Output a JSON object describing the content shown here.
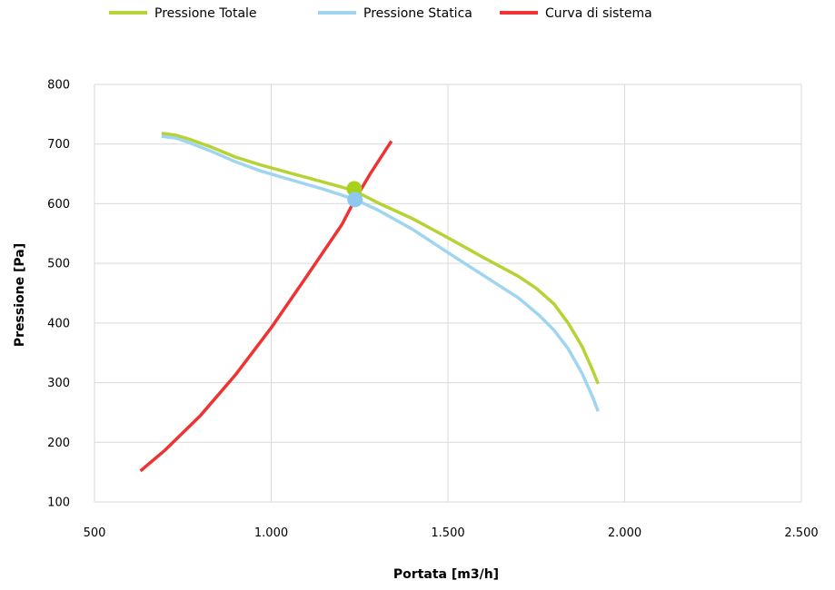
{
  "chart_data": {
    "type": "line",
    "title": "",
    "xlabel": "Portata [m3/h]",
    "ylabel": "Pressione [Pa]",
    "xlim": [
      500,
      2500
    ],
    "ylim": [
      100,
      800
    ],
    "x_ticks": [
      500,
      1000,
      1500,
      2000,
      2500
    ],
    "x_tick_labels": [
      "500",
      "1.000",
      "1.500",
      "2.000",
      "2.500"
    ],
    "y_ticks": [
      100,
      200,
      300,
      400,
      500,
      600,
      700,
      800
    ],
    "y_tick_labels": [
      "100",
      "200",
      "300",
      "400",
      "500",
      "600",
      "700",
      "800"
    ],
    "grid": true,
    "legend_position": "top",
    "series": [
      {
        "name": "Pressione Totale",
        "color": "#b5d334",
        "points": [
          [
            690,
            718
          ],
          [
            730,
            715
          ],
          [
            770,
            708
          ],
          [
            830,
            695
          ],
          [
            900,
            678
          ],
          [
            970,
            665
          ],
          [
            1050,
            652
          ],
          [
            1150,
            636
          ],
          [
            1235,
            622
          ],
          [
            1300,
            602
          ],
          [
            1400,
            575
          ],
          [
            1500,
            543
          ],
          [
            1600,
            510
          ],
          [
            1700,
            478
          ],
          [
            1750,
            458
          ],
          [
            1800,
            432
          ],
          [
            1840,
            400
          ],
          [
            1880,
            360
          ],
          [
            1910,
            320
          ],
          [
            1925,
            298
          ]
        ]
      },
      {
        "name": "Pressione Statica",
        "color": "#9fd5f0",
        "points": [
          [
            690,
            713
          ],
          [
            730,
            710
          ],
          [
            770,
            702
          ],
          [
            830,
            688
          ],
          [
            900,
            670
          ],
          [
            970,
            655
          ],
          [
            1050,
            641
          ],
          [
            1150,
            624
          ],
          [
            1237,
            607
          ],
          [
            1300,
            590
          ],
          [
            1400,
            557
          ],
          [
            1500,
            518
          ],
          [
            1600,
            480
          ],
          [
            1700,
            442
          ],
          [
            1760,
            412
          ],
          [
            1800,
            388
          ],
          [
            1840,
            357
          ],
          [
            1880,
            315
          ],
          [
            1910,
            275
          ],
          [
            1925,
            252
          ]
        ]
      },
      {
        "name": "Curva di sistema",
        "color": "#ee3333",
        "points": [
          [
            630,
            152
          ],
          [
            700,
            187
          ],
          [
            800,
            245
          ],
          [
            900,
            314
          ],
          [
            1000,
            392
          ],
          [
            1100,
            478
          ],
          [
            1200,
            565
          ],
          [
            1237,
            607
          ],
          [
            1280,
            650
          ],
          [
            1340,
            705
          ]
        ]
      }
    ],
    "markers": [
      {
        "series": "Pressione Totale",
        "x": 1235,
        "y": 625,
        "color": "#a6d21c"
      },
      {
        "series": "Pressione Statica",
        "x": 1237,
        "y": 607,
        "color": "#8cc8f0"
      }
    ]
  }
}
